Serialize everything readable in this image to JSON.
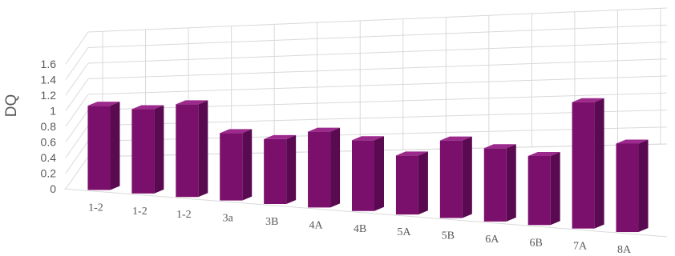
{
  "chart_data": {
    "type": "bar",
    "style": "3d-perspective-columns",
    "categories": [
      "1-2",
      "1-2",
      "1-2",
      "3a",
      "3B",
      "4A",
      "4B",
      "5A",
      "5B",
      "6A",
      "6B",
      "7A",
      "8A"
    ],
    "values": [
      1.0,
      1.0,
      1.1,
      0.8,
      0.77,
      0.9,
      0.84,
      0.7,
      0.92,
      0.87,
      0.82,
      1.5,
      1.05
    ],
    "title": "",
    "xlabel": "",
    "ylabel": "DQ",
    "ylim": [
      0,
      1.6
    ],
    "yticks": [
      "0",
      "0.2",
      "0.4",
      "0.6",
      "0.8",
      "1",
      "1.2",
      "1.4",
      "1.6"
    ],
    "grid": true,
    "legend": "none",
    "colors": {
      "bar_front": "#7b0f6c",
      "bar_side": "#5a0a50",
      "bar_top": "#9c2a8c",
      "grid": "#d9d9d9",
      "text": "#595959"
    }
  }
}
